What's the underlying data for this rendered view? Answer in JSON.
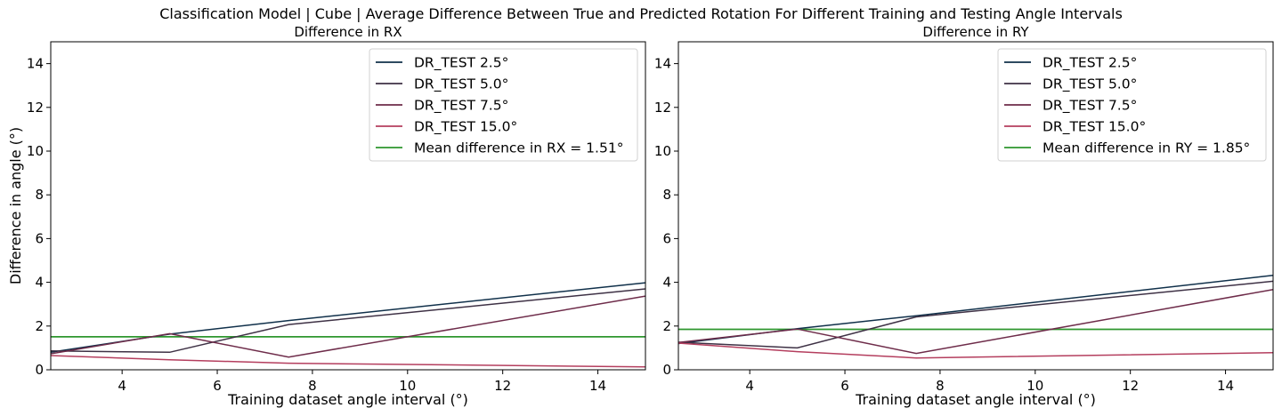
{
  "figure": {
    "suptitle": "Classification Model | Cube | Average Difference Between True and Predicted Rotation For Different Training and Testing Angle Intervals"
  },
  "chart_data": [
    {
      "type": "line",
      "title": "Difference in RX",
      "xlabel": "Training dataset angle interval (°)",
      "ylabel": "Difference in angle (°)",
      "xlim": [
        2.5,
        15
      ],
      "ylim": [
        0,
        15
      ],
      "xticks": [
        4,
        6,
        8,
        10,
        12,
        14
      ],
      "yticks": [
        0,
        2,
        4,
        6,
        8,
        10,
        12,
        14
      ],
      "grid": false,
      "legend_position": "top-right",
      "x": [
        2.5,
        5.0,
        7.5,
        15.0
      ],
      "series": [
        {
          "name": "DR_TEST 2.5°",
          "color": "#10304a",
          "values": [
            0.8,
            1.63,
            2.25,
            3.98
          ]
        },
        {
          "name": "DR_TEST 5.0°",
          "color": "#3e3145",
          "values": [
            0.86,
            0.8,
            2.07,
            3.7
          ]
        },
        {
          "name": "DR_TEST 7.5°",
          "color": "#6e2c4a",
          "values": [
            0.73,
            1.65,
            0.58,
            3.37
          ]
        },
        {
          "name": "DR_TEST 15.0°",
          "color": "#b43e5e",
          "values": [
            0.65,
            0.46,
            0.3,
            0.13
          ]
        }
      ],
      "reference_line": {
        "name": "Mean difference in RX = 1.51°",
        "color": "#2e962e",
        "value": 1.51
      }
    },
    {
      "type": "line",
      "title": "Difference in RY",
      "xlabel": "Training dataset angle interval (°)",
      "ylabel": "",
      "xlim": [
        2.5,
        15
      ],
      "ylim": [
        0,
        15
      ],
      "xticks": [
        4,
        6,
        8,
        10,
        12,
        14
      ],
      "yticks": [
        0,
        2,
        4,
        6,
        8,
        10,
        12,
        14
      ],
      "grid": false,
      "legend_position": "top-right",
      "x": [
        2.5,
        5.0,
        7.5,
        15.0
      ],
      "series": [
        {
          "name": "DR_TEST 2.5°",
          "color": "#10304a",
          "values": [
            1.2,
            1.88,
            2.47,
            4.32
          ]
        },
        {
          "name": "DR_TEST 5.0°",
          "color": "#3e3145",
          "values": [
            1.26,
            1.0,
            2.42,
            4.05
          ]
        },
        {
          "name": "DR_TEST 7.5°",
          "color": "#6e2c4a",
          "values": [
            1.25,
            1.86,
            0.75,
            3.67
          ]
        },
        {
          "name": "DR_TEST 15.0°",
          "color": "#b43e5e",
          "values": [
            1.22,
            0.83,
            0.54,
            0.78
          ]
        }
      ],
      "reference_line": {
        "name": "Mean difference in RY = 1.85°",
        "color": "#2e962e",
        "value": 1.85
      }
    }
  ]
}
